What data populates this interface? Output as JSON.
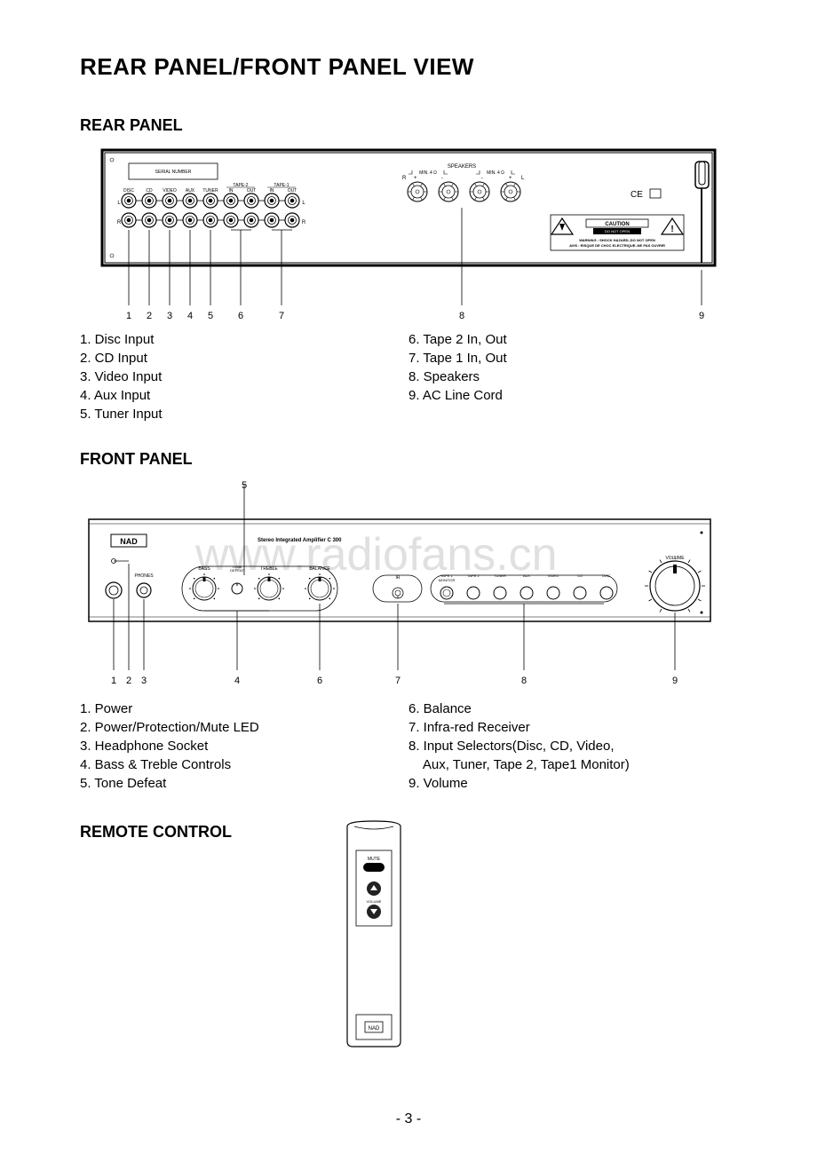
{
  "page_title": "REAR PANEL/FRONT PANEL VIEW",
  "page_number": "- 3 -",
  "watermark": "www.radiofans.cn",
  "rear": {
    "title": "REAR PANEL",
    "serial_label": "SERIAL NUMBER",
    "speakers_label": "SPEAKERS",
    "min_ohm": "MIN. 4 Ω",
    "inputs": [
      "DISC",
      "CD",
      "VIDEO",
      "AUX",
      "TUNER"
    ],
    "tape2": {
      "label": "TAPE-2",
      "in": "IN",
      "out": "OUT"
    },
    "tape1": {
      "label": "TAPE-1",
      "in": "IN",
      "out": "OUT"
    },
    "lr_l": "L",
    "lr_r": "R",
    "spk_r": "R",
    "spk_l": "L",
    "spk_plus": "+",
    "spk_minus": "-",
    "caution_box": "CAUTION",
    "caution_sub": "DO NOT OPEN",
    "warn1": "WARNING : SHOCK HAZARD–DO NOT OPEN",
    "warn2": "AVIS : RISQUE DE CHOC ELECTRIQUE–NE PAS OUVRIR",
    "ce": "CE",
    "callouts": [
      "1",
      "2",
      "3",
      "4",
      "5",
      "6",
      "7",
      "8",
      "9"
    ],
    "legend_left": [
      "1. Disc Input",
      "2. CD Input",
      "3. Video Input",
      "4. Aux Input",
      "5. Tuner Input"
    ],
    "legend_right": [
      "6. Tape 2 In, Out",
      "7. Tape 1 In, Out",
      "8. Speakers",
      "9. AC Line Cord"
    ]
  },
  "front": {
    "title": "FRONT PANEL",
    "brand": "NAD",
    "model": "Stereo Integrated Amplifier C 300",
    "phones": "PHONES",
    "knobs": [
      "BASS",
      "TONE\nDEFEAT",
      "TREBLE",
      "BALANCE"
    ],
    "ir": "IR",
    "selectors": [
      "TAPE 1\nMONITOR",
      "TAPE 2",
      "TUNER",
      "AUX",
      "VIDEO",
      "CD",
      "DISC"
    ],
    "volume": "VOLUME",
    "callouts": [
      "1",
      "2",
      "3",
      "4",
      "5",
      "6",
      "7",
      "8",
      "9"
    ],
    "legend_left": [
      "1. Power",
      "2. Power/Protection/Mute LED",
      "3. Headphone Socket",
      "4. Bass & Treble Controls",
      "5. Tone Defeat"
    ],
    "legend_right": [
      "6. Balance",
      "7. Infra-red Receiver",
      "8. Input Selectors(Disc, CD, Video,",
      "    Aux, Tuner, Tape 2, Tape1 Monitor)",
      "9. Volume"
    ]
  },
  "remote": {
    "title": "REMOTE CONTROL",
    "mute": "MUTE",
    "volume": "VOLUME",
    "brand": "NAD"
  },
  "colors": {
    "stroke": "#000000",
    "bg": "#ffffff",
    "watermark": "#e0e0e0"
  }
}
